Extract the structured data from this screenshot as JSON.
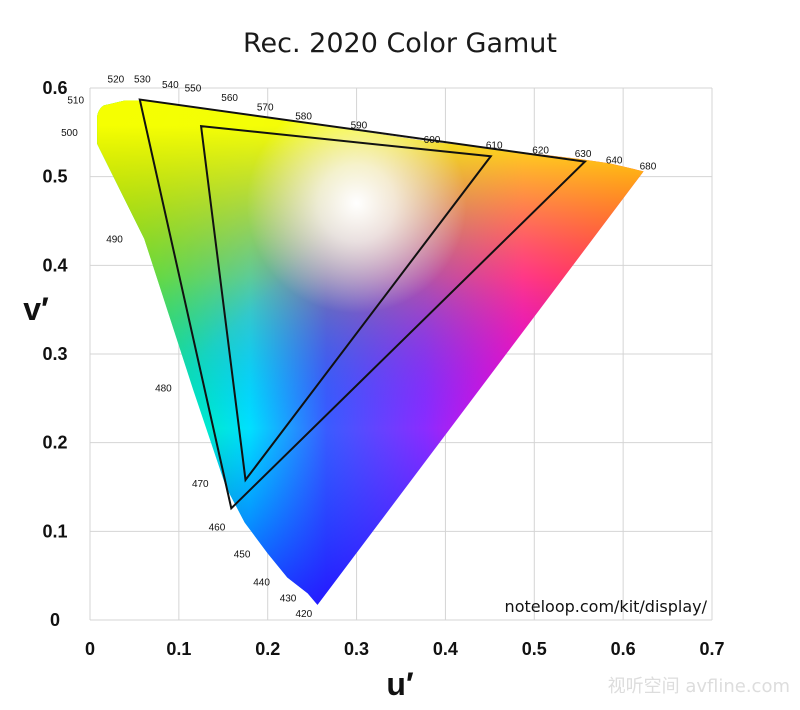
{
  "chart_data": {
    "type": "scatter",
    "title": "Rec. 2020 Color Gamut",
    "xlabel": "u′",
    "ylabel": "v′",
    "xlim": [
      0,
      0.7
    ],
    "ylim": [
      0,
      0.6
    ],
    "x_ticks": [
      "0",
      "0.1",
      "0.2",
      "0.3",
      "0.4",
      "0.5",
      "0.6",
      "0.7"
    ],
    "y_ticks": [
      "0",
      "0.1",
      "0.2",
      "0.3",
      "0.4",
      "0.5",
      "0.6"
    ],
    "grid": true,
    "spectral_locus": [
      {
        "label": "420",
        "u": 0.256,
        "v": 0.017
      },
      {
        "label": "430",
        "u": 0.245,
        "v": 0.03
      },
      {
        "label": "440",
        "u": 0.222,
        "v": 0.048
      },
      {
        "label": "450",
        "u": 0.2,
        "v": 0.075
      },
      {
        "label": "460",
        "u": 0.174,
        "v": 0.11
      },
      {
        "label": "470",
        "u": 0.153,
        "v": 0.15
      },
      {
        "label": "480",
        "u": 0.116,
        "v": 0.26
      },
      {
        "label": "490",
        "u": 0.061,
        "v": 0.43
      },
      {
        "label": "500",
        "u": 0.008,
        "v": 0.537
      },
      {
        "label": "510",
        "u": 0.015,
        "v": 0.58
      },
      {
        "label": "520",
        "u": 0.04,
        "v": 0.586
      },
      {
        "label": "530",
        "u": 0.063,
        "v": 0.586
      },
      {
        "label": "540",
        "u": 0.09,
        "v": 0.582
      },
      {
        "label": "550",
        "u": 0.12,
        "v": 0.578
      },
      {
        "label": "560",
        "u": 0.15,
        "v": 0.574
      },
      {
        "label": "570",
        "u": 0.19,
        "v": 0.568
      },
      {
        "label": "580",
        "u": 0.24,
        "v": 0.562
      },
      {
        "label": "590",
        "u": 0.3,
        "v": 0.552
      },
      {
        "label": "600",
        "u": 0.38,
        "v": 0.54
      },
      {
        "label": "610",
        "u": 0.45,
        "v": 0.532
      },
      {
        "label": "620",
        "u": 0.5,
        "v": 0.526
      },
      {
        "label": "630",
        "u": 0.55,
        "v": 0.52
      },
      {
        "label": "640",
        "u": 0.585,
        "v": 0.515
      },
      {
        "label": "680",
        "u": 0.623,
        "v": 0.506
      }
    ],
    "series": [
      {
        "vertices": [
          {
            "u": 0.451,
            "v": 0.523
          },
          {
            "u": 0.125,
            "v": 0.557
          },
          {
            "u": 0.175,
            "v": 0.158
          }
        ]
      },
      {
        "vertices": [
          {
            "u": 0.557,
            "v": 0.517
          },
          {
            "u": 0.056,
            "v": 0.587
          },
          {
            "u": 0.159,
            "v": 0.126
          }
        ]
      }
    ]
  },
  "credit": "noteloop.com/kit/display/",
  "watermark": "视听空间 avfline.com"
}
